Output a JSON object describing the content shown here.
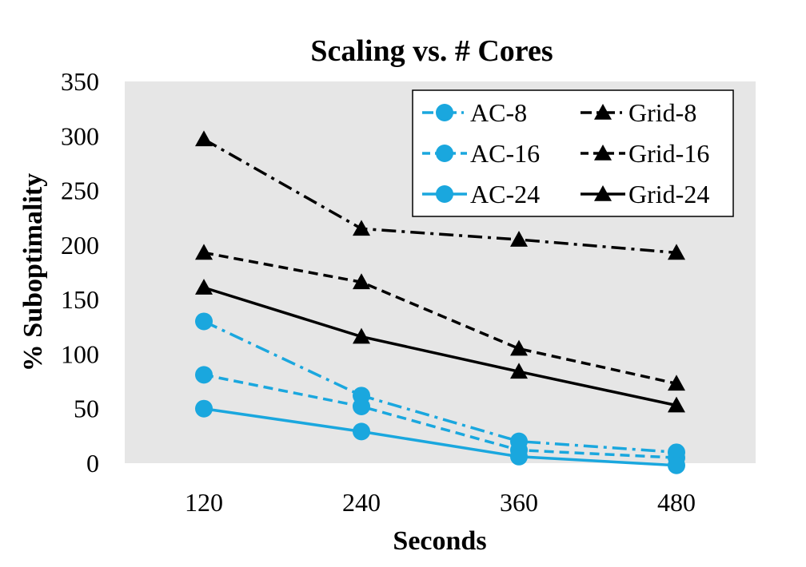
{
  "chart_data": {
    "type": "line",
    "title": "Scaling vs. # Cores",
    "xlabel": "Seconds",
    "ylabel": "% Suboptimality",
    "x": [
      120,
      240,
      360,
      480
    ],
    "x_tick_labels": [
      "120",
      "240",
      "360",
      "480"
    ],
    "ylim": [
      0,
      350
    ],
    "y_ticks": [
      0,
      50,
      100,
      150,
      200,
      250,
      300,
      350
    ],
    "y_tick_labels": [
      "0",
      "50",
      "100",
      "150",
      "200",
      "250",
      "300",
      "350"
    ],
    "grid": false,
    "legend_position": "top-right",
    "plot_background": "#e6e6e6",
    "series": [
      {
        "name": "AC-8",
        "values": [
          130,
          62,
          20,
          10
        ],
        "color": "#1aa7de",
        "dash": "dash-dot",
        "marker": "circle"
      },
      {
        "name": "AC-16",
        "values": [
          81,
          52,
          12,
          5
        ],
        "color": "#1aa7de",
        "dash": "dashed",
        "marker": "circle"
      },
      {
        "name": "AC-24",
        "values": [
          50,
          29,
          6,
          -2
        ],
        "color": "#1aa7de",
        "dash": "solid",
        "marker": "circle"
      },
      {
        "name": "Grid-8",
        "values": [
          297,
          215,
          205,
          193
        ],
        "color": "#000000",
        "dash": "dash-dot",
        "marker": "triangle"
      },
      {
        "name": "Grid-16",
        "values": [
          193,
          166,
          105,
          73
        ],
        "color": "#000000",
        "dash": "dashed",
        "marker": "triangle"
      },
      {
        "name": "Grid-24",
        "values": [
          161,
          116,
          84,
          53
        ],
        "color": "#000000",
        "dash": "solid",
        "marker": "triangle"
      }
    ]
  }
}
